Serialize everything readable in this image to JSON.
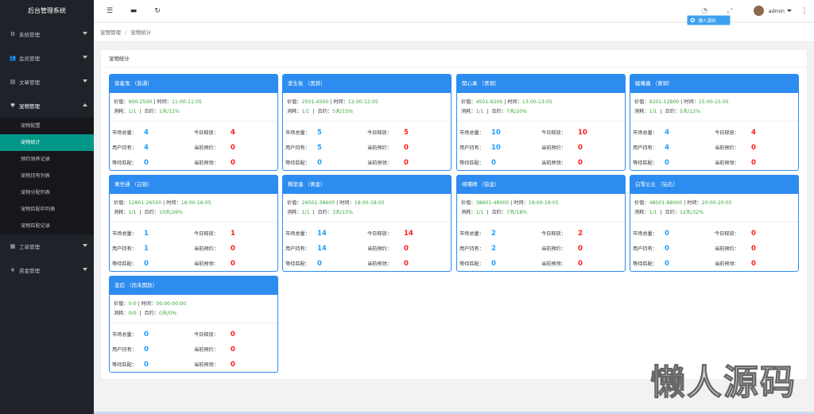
{
  "app": {
    "title": "后台管理系统"
  },
  "topbar": {
    "icons": [
      "menu-collapse-icon",
      "message-icon",
      "refresh-icon",
      "palette-icon",
      "fullscreen-icon",
      "more-icon"
    ],
    "user": "admin"
  },
  "badge": {
    "label": "懒人源码"
  },
  "sidebar": {
    "items": [
      {
        "label": "系统管理",
        "icon": "gear-icon",
        "glyph": "⚙"
      },
      {
        "label": "会员管理",
        "icon": "users-icon",
        "glyph": "👥"
      },
      {
        "label": "文章管理",
        "icon": "document-icon",
        "glyph": "▤"
      },
      {
        "label": "宠物管理",
        "icon": "heart-icon",
        "glyph": "♥"
      },
      {
        "label": "工单管理",
        "icon": "ticket-icon",
        "glyph": "▦"
      },
      {
        "label": "资金管理",
        "icon": "yen-icon",
        "glyph": "¥"
      }
    ],
    "submenu": [
      "宠物配置",
      "宠物统计",
      "预约领养记录",
      "宠物持有列表",
      "宠物分配列表",
      "宠物匹配中列表",
      "宠物匹配记录"
    ]
  },
  "breadcrumb": {
    "parent": "宠物管理",
    "sep": "/",
    "current": "宠物统计"
  },
  "panel": {
    "title": "宠物统计"
  },
  "labels": {
    "price": "价值：",
    "time": "时间：",
    "cost": "消耗：",
    "contract": "合约：",
    "market_total": "市场总量：",
    "today_release": "今日释放：",
    "user_hold": "用户持有：",
    "current_reserve": "当前预约：",
    "wait_match": "等待匹配：",
    "current_adopt": "当前预领："
  },
  "cards": [
    {
      "name": "害羞鬼  （普通）",
      "price": "900-2500",
      "time": "11:00-11:05",
      "cost": "1/1",
      "contract": "1天/12%",
      "market": "4",
      "release": "4",
      "hold": "4",
      "reserve": "0",
      "wait": "0",
      "adopt": "0"
    },
    {
      "name": "爱生氣  （黑铁）",
      "price": "2501-4500",
      "time": "12:00-12:05",
      "cost": "1/1",
      "contract": "5天/15%",
      "market": "5",
      "release": "5",
      "hold": "5",
      "reserve": "0",
      "wait": "0",
      "adopt": "0"
    },
    {
      "name": "開心果  （青铜）",
      "price": "4501-9200",
      "time": "13:00-13:05",
      "cost": "1/1",
      "contract": "7天/20%",
      "market": "10",
      "release": "10",
      "hold": "10",
      "reserve": "0",
      "wait": "0",
      "adopt": "0"
    },
    {
      "name": "瞌睡蟲  （黄铜）",
      "price": "9201-12800",
      "time": "15:00-15:05",
      "cost": "1/1",
      "contract": "5天/12%",
      "market": "4",
      "release": "4",
      "hold": "4",
      "reserve": "0",
      "wait": "0",
      "adopt": "0"
    },
    {
      "name": "萬世通  （白银）",
      "price": "12801-26500",
      "time": "16:00-16:05",
      "cost": "1/1",
      "contract": "10天/26%",
      "market": "1",
      "release": "1",
      "hold": "1",
      "reserve": "0",
      "wait": "0",
      "adopt": "0"
    },
    {
      "name": "糊塗蛋  （黄金）",
      "price": "26501-38600",
      "time": "18:00-18:05",
      "cost": "1/1",
      "contract": "3天/15%",
      "market": "14",
      "release": "14",
      "hold": "14",
      "reserve": "0",
      "wait": "0",
      "adopt": "0"
    },
    {
      "name": "噴嚏精  （铂金）",
      "price": "38601-48000",
      "time": "19:00-19:05",
      "cost": "1/1",
      "contract": "7天/18%",
      "market": "2",
      "release": "2",
      "hold": "2",
      "reserve": "0",
      "wait": "0",
      "adopt": "0"
    },
    {
      "name": "白雪公主  （钻石）",
      "price": "48001-88000",
      "time": "20:00-20:05",
      "cost": "1/1",
      "contract": "12天/32%",
      "market": "0",
      "release": "0",
      "hold": "0",
      "reserve": "0",
      "wait": "0",
      "adopt": "0"
    },
    {
      "name": "皇后  （尚未開放）",
      "price": "0-0",
      "time": "00:00-00:00",
      "cost": "0/0",
      "contract": "0天/0%",
      "market": "0",
      "release": "0",
      "hold": "0",
      "reserve": "0",
      "wait": "0",
      "adopt": "0"
    }
  ],
  "watermark": "懒人源码",
  "colors": {
    "sidebar": "#20222a",
    "active": "#009688",
    "card": "#2d8cf0",
    "blue_value": "#1e9fff",
    "red_value": "#ff1a1a"
  }
}
